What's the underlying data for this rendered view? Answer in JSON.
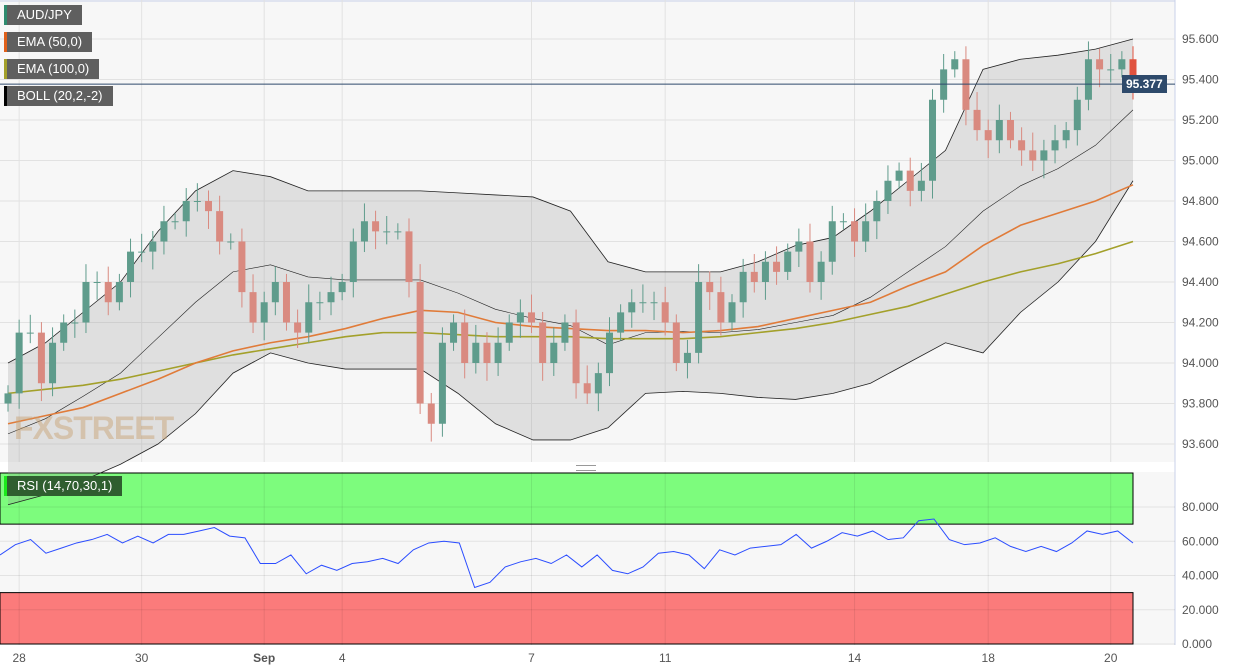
{
  "chart_data": {
    "type": "candlestick",
    "symbol": "AUD/JPY",
    "indicators": [
      "EMA (50,0)",
      "EMA (100,0)",
      "BOLL (20,2,-2)"
    ],
    "rsi_label": "RSI (14,70,30,1)",
    "current_price": "95.377",
    "ylim": [
      93.5,
      95.7
    ],
    "y_ticks": [
      "93.600",
      "93.800",
      "94.000",
      "94.200",
      "94.400",
      "94.600",
      "94.800",
      "95.000",
      "95.200",
      "95.400",
      "95.600"
    ],
    "rsi_ylim": [
      0,
      100
    ],
    "rsi_ticks": [
      "0.000",
      "20.000",
      "40.000",
      "60.000",
      "80.000"
    ],
    "rsi_overbought": 70,
    "rsi_oversold": 30,
    "x_labels": [
      {
        "label": "28",
        "index": 1
      },
      {
        "label": "30",
        "index": 12
      },
      {
        "label": "Sep",
        "index": 23,
        "bold": true
      },
      {
        "label": "4",
        "index": 30
      },
      {
        "label": "7",
        "index": 47
      },
      {
        "label": "11",
        "index": 59
      },
      {
        "label": "14",
        "index": 76
      },
      {
        "label": "18",
        "index": 88
      },
      {
        "label": "20",
        "index": 99
      }
    ],
    "close": [
      93.85,
      94.15,
      94.15,
      93.9,
      94.1,
      94.2,
      94.2,
      94.4,
      94.4,
      94.3,
      94.4,
      94.55,
      94.55,
      94.6,
      94.7,
      94.7,
      94.8,
      94.8,
      94.75,
      94.6,
      94.6,
      94.35,
      94.2,
      94.3,
      94.4,
      94.2,
      94.15,
      94.3,
      94.3,
      94.35,
      94.4,
      94.6,
      94.7,
      94.65,
      94.65,
      94.65,
      94.4,
      93.8,
      93.7,
      94.1,
      94.2,
      94.0,
      94.1,
      94.0,
      94.1,
      94.2,
      94.25,
      94.2,
      94.0,
      94.1,
      94.2,
      93.9,
      93.85,
      93.95,
      94.15,
      94.25,
      94.3,
      94.3,
      94.3,
      94.2,
      94.0,
      94.05,
      94.4,
      94.35,
      94.2,
      94.3,
      94.45,
      94.4,
      94.5,
      94.45,
      94.55,
      94.6,
      94.4,
      94.5,
      94.7,
      94.7,
      94.6,
      94.7,
      94.8,
      94.9,
      94.95,
      94.85,
      94.9,
      95.3,
      95.45,
      95.5,
      95.25,
      95.15,
      95.1,
      95.2,
      95.1,
      95.05,
      95.0,
      95.05,
      95.1,
      95.15,
      95.3,
      95.5,
      95.45,
      95.45,
      95.5,
      95.377
    ],
    "ema50": [
      93.7,
      93.74,
      93.78,
      93.85,
      93.92,
      94.0,
      94.06,
      94.1,
      94.13,
      94.17,
      94.22,
      94.26,
      94.25,
      94.2,
      94.18,
      94.17,
      94.16,
      94.16,
      94.15,
      94.16,
      94.18,
      94.22,
      94.26,
      94.3,
      94.38,
      94.45,
      94.58,
      94.68,
      94.74,
      94.8,
      94.88
    ],
    "ema100": [
      93.85,
      93.87,
      93.89,
      93.92,
      93.96,
      94.0,
      94.04,
      94.07,
      94.1,
      94.13,
      94.15,
      94.15,
      94.14,
      94.13,
      94.13,
      94.13,
      94.12,
      94.12,
      94.12,
      94.13,
      94.15,
      94.17,
      94.2,
      94.24,
      94.28,
      94.34,
      94.4,
      94.45,
      94.49,
      94.54,
      94.6
    ],
    "boll_upper": [
      94.0,
      94.1,
      94.25,
      94.4,
      94.65,
      94.85,
      94.95,
      94.92,
      94.85,
      94.85,
      94.85,
      94.85,
      94.84,
      94.83,
      94.82,
      94.75,
      94.5,
      94.45,
      94.45,
      94.45,
      94.5,
      94.58,
      94.62,
      94.75,
      94.9,
      95.05,
      95.45,
      95.5,
      95.52,
      95.55,
      95.6
    ],
    "boll_lower": [
      93.3,
      93.35,
      93.42,
      93.5,
      93.6,
      93.75,
      93.95,
      94.05,
      94.0,
      93.97,
      93.97,
      93.97,
      93.85,
      93.7,
      93.62,
      93.62,
      93.68,
      93.85,
      93.86,
      93.85,
      93.83,
      93.82,
      93.85,
      93.9,
      94.0,
      94.1,
      94.05,
      94.25,
      94.4,
      94.6,
      94.9
    ],
    "rsi": [
      52,
      58,
      61,
      53,
      56,
      59,
      61,
      64,
      59,
      63,
      59,
      64,
      64,
      66,
      68,
      63,
      62,
      47,
      47,
      52,
      41,
      46,
      43,
      47,
      48,
      50,
      47,
      55,
      59,
      60,
      59,
      33,
      36,
      45,
      48,
      50,
      47,
      52,
      45,
      52,
      43,
      41,
      45,
      53,
      54,
      52,
      44,
      55,
      52,
      56,
      57,
      58,
      64,
      56,
      60,
      65,
      63,
      66,
      61,
      62,
      72,
      73,
      61,
      58,
      59,
      62,
      57,
      54,
      57,
      54,
      59,
      66,
      64,
      66,
      59
    ],
    "colors": {
      "up": "#5f9c8c",
      "down": "#d98a80",
      "last_down": "#e0533f",
      "ema50": "#e07b39",
      "ema100": "#a3a02a",
      "boll": "#222222",
      "rsi": "#2b4dff",
      "overbought": "#7dfc7d",
      "oversold": "#fb7b7b",
      "price_line": "#2e4a6b"
    }
  },
  "watermark": "FXSTREET"
}
